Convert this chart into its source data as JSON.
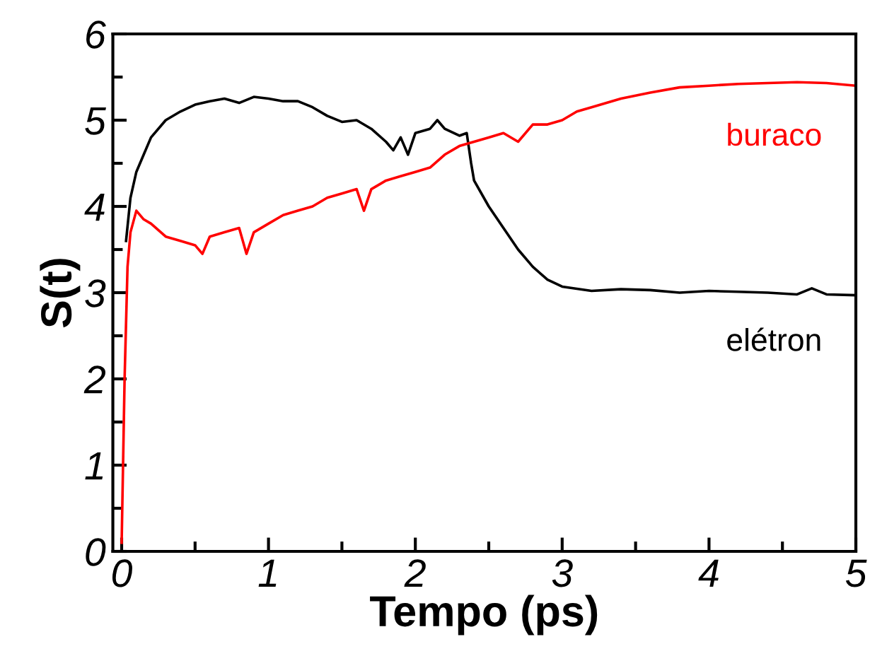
{
  "chart_data": {
    "type": "line",
    "xlabel": "Tempo (ps)",
    "ylabel": "S(t)",
    "xlim": [
      -0.06,
      5
    ],
    "ylim": [
      0,
      6
    ],
    "xticks": [
      0,
      1,
      2,
      3,
      4,
      5
    ],
    "yticks": [
      0,
      1,
      2,
      3,
      4,
      5,
      6
    ],
    "grid": false,
    "legend": false,
    "marker": "none",
    "line_style": "solid",
    "series": [
      {
        "name": "elétron",
        "color": "#000000",
        "x": [
          0.03,
          0.06,
          0.1,
          0.15,
          0.2,
          0.3,
          0.4,
          0.5,
          0.6,
          0.7,
          0.8,
          0.9,
          1.0,
          1.1,
          1.2,
          1.3,
          1.4,
          1.5,
          1.6,
          1.7,
          1.8,
          1.85,
          1.9,
          1.95,
          2.0,
          2.1,
          2.15,
          2.2,
          2.3,
          2.35,
          2.38,
          2.4,
          2.5,
          2.6,
          2.7,
          2.8,
          2.9,
          3.0,
          3.2,
          3.4,
          3.6,
          3.8,
          4.0,
          4.2,
          4.4,
          4.6,
          4.7,
          4.8,
          5.0
        ],
        "values": [
          3.6,
          4.1,
          4.4,
          4.6,
          4.8,
          5.0,
          5.1,
          5.18,
          5.22,
          5.25,
          5.2,
          5.27,
          5.25,
          5.22,
          5.22,
          5.15,
          5.05,
          4.98,
          5.0,
          4.9,
          4.75,
          4.65,
          4.8,
          4.6,
          4.85,
          4.9,
          5.0,
          4.9,
          4.82,
          4.85,
          4.5,
          4.3,
          4.0,
          3.75,
          3.5,
          3.3,
          3.15,
          3.07,
          3.02,
          3.04,
          3.03,
          3.0,
          3.02,
          3.01,
          3.0,
          2.98,
          3.05,
          2.98,
          2.97
        ]
      },
      {
        "name": "buraco",
        "color": "#ff0000",
        "x": [
          0,
          0.02,
          0.04,
          0.06,
          0.1,
          0.15,
          0.2,
          0.3,
          0.4,
          0.5,
          0.55,
          0.6,
          0.7,
          0.8,
          0.85,
          0.9,
          1.0,
          1.1,
          1.2,
          1.3,
          1.4,
          1.5,
          1.6,
          1.65,
          1.7,
          1.8,
          1.9,
          2.0,
          2.1,
          2.2,
          2.3,
          2.4,
          2.5,
          2.6,
          2.7,
          2.8,
          2.9,
          3.0,
          3.1,
          3.2,
          3.4,
          3.6,
          3.8,
          4.0,
          4.2,
          4.4,
          4.6,
          4.8,
          5.0
        ],
        "values": [
          0.1,
          2.0,
          3.3,
          3.7,
          3.95,
          3.85,
          3.8,
          3.65,
          3.6,
          3.55,
          3.45,
          3.65,
          3.7,
          3.75,
          3.45,
          3.7,
          3.8,
          3.9,
          3.95,
          4.0,
          4.1,
          4.15,
          4.2,
          3.95,
          4.2,
          4.3,
          4.35,
          4.4,
          4.45,
          4.6,
          4.7,
          4.75,
          4.8,
          4.85,
          4.75,
          4.95,
          4.95,
          5.0,
          5.1,
          5.15,
          5.25,
          5.32,
          5.38,
          5.4,
          5.42,
          5.43,
          5.44,
          5.43,
          5.4
        ]
      }
    ]
  }
}
